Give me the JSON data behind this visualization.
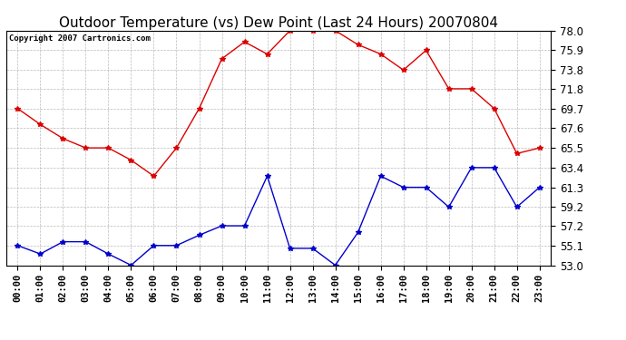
{
  "title": "Outdoor Temperature (vs) Dew Point (Last 24 Hours) 20070804",
  "copyright_text": "Copyright 2007 Cartronics.com",
  "x_labels": [
    "00:00",
    "01:00",
    "02:00",
    "03:00",
    "04:00",
    "05:00",
    "06:00",
    "07:00",
    "08:00",
    "09:00",
    "10:00",
    "11:00",
    "12:00",
    "13:00",
    "14:00",
    "15:00",
    "16:00",
    "17:00",
    "18:00",
    "19:00",
    "20:00",
    "21:00",
    "22:00",
    "23:00"
  ],
  "temp_data": [
    69.7,
    68.0,
    66.5,
    65.5,
    65.5,
    64.2,
    62.5,
    65.5,
    69.7,
    75.0,
    76.8,
    75.5,
    78.0,
    78.0,
    78.0,
    76.5,
    75.5,
    73.8,
    75.9,
    71.8,
    71.8,
    69.7,
    64.9,
    65.5
  ],
  "dew_data": [
    55.1,
    54.2,
    55.5,
    55.5,
    54.2,
    53.0,
    55.1,
    55.1,
    56.2,
    57.2,
    57.2,
    62.5,
    54.8,
    54.8,
    53.0,
    56.5,
    62.5,
    61.3,
    61.3,
    59.2,
    63.4,
    63.4,
    59.2,
    61.3
  ],
  "temp_color": "#dd0000",
  "dew_color": "#0000cc",
  "bg_color": "#ffffff",
  "grid_color": "#aaaaaa",
  "ylim": [
    53.0,
    78.0
  ],
  "yticks": [
    53.0,
    55.1,
    57.2,
    59.2,
    61.3,
    63.4,
    65.5,
    67.6,
    69.7,
    71.8,
    73.8,
    75.9,
    78.0
  ],
  "title_fontsize": 11,
  "copyright_fontsize": 6.5,
  "tick_fontsize": 7.5,
  "ytick_fontsize": 8.5
}
